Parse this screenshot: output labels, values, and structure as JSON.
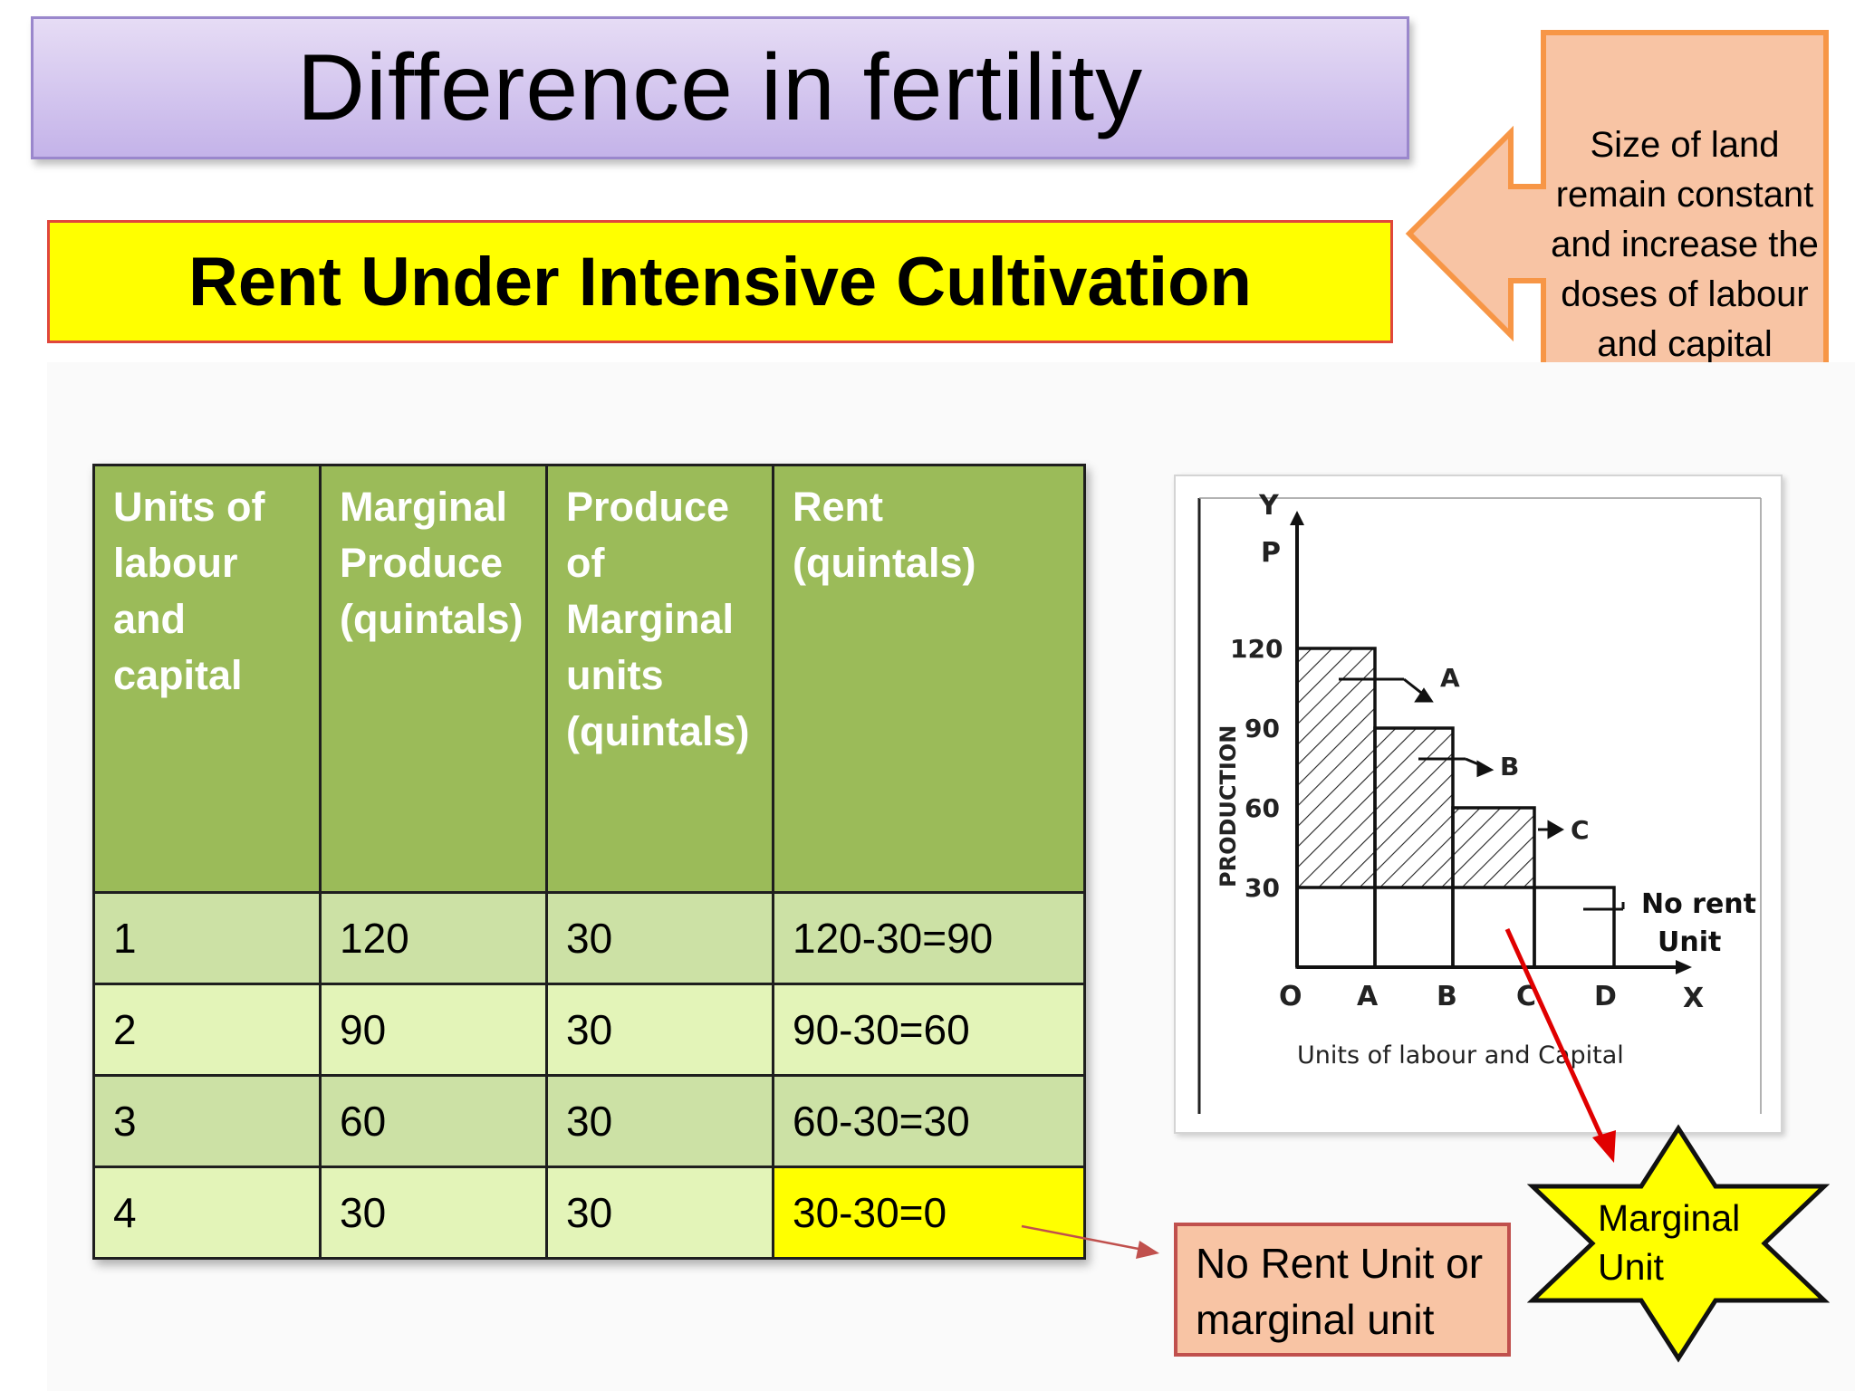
{
  "title": "Difference in fertility",
  "subtitle": "Rent Under Intensive  Cultivation",
  "callout": {
    "text": "Size of land remain constant and increase the doses of labour and capital"
  },
  "table": {
    "headers": [
      "Units of labour and capital",
      "Marginal Produce (quintals)",
      "Produce of Marginal units (quintals)",
      "Rent (quintals)"
    ],
    "rows": [
      [
        "1",
        "120",
        "30",
        "120-30=90"
      ],
      [
        "2",
        "90",
        "30",
        "90-30=60"
      ],
      [
        "3",
        "60",
        "30",
        "60-30=30"
      ],
      [
        "4",
        "30",
        "30",
        "30-30=0"
      ]
    ]
  },
  "diagram": {
    "y_axis_label": "PRODUCTION",
    "y_letter": "Y",
    "p_letter": "P",
    "x_letter": "X",
    "y_ticks": [
      "120",
      "90",
      "60",
      "30"
    ],
    "x_ticks": [
      "O",
      "A",
      "B",
      "C",
      "D"
    ],
    "x_axis_label": "Units of labour and Capital",
    "area_labels": [
      "A",
      "B",
      "C"
    ],
    "no_rent_line1": "No rent",
    "no_rent_line2": "Unit"
  },
  "no_rent_box": {
    "line1": "No Rent Unit or",
    "line2": "marginal unit"
  },
  "marginal_star": {
    "line1": "Marginal",
    "line2": "Unit"
  },
  "colors": {
    "header_green": "#9bbb59",
    "row_green": "#cce1a5",
    "row_light": "#e3f4b8",
    "highlight": "#ffff00",
    "callout_fill": "#f8c4a4",
    "callout_border": "#f79646",
    "arrow_red": "#e00000"
  }
}
